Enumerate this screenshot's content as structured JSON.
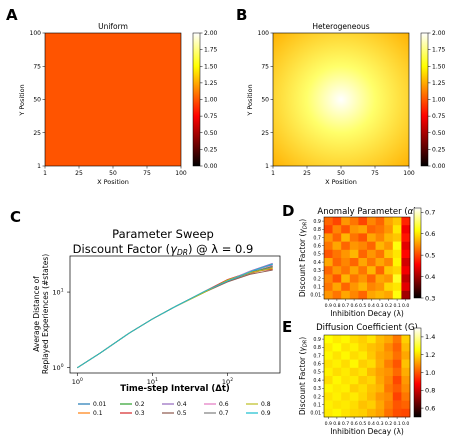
{
  "panels": {
    "A": "A",
    "B": "B",
    "C": "C",
    "D": "D",
    "E": "E"
  },
  "chart_data": [
    {
      "id": "A",
      "type": "heatmap",
      "title": "Uniform",
      "xlabel": "X Position",
      "ylabel": "Y Position",
      "xticks": [
        "1",
        "25",
        "50",
        "75",
        "100"
      ],
      "yticks": [
        "1",
        "25",
        "50",
        "75",
        "100"
      ],
      "colorbar_ticks": [
        "0.00",
        "0.25",
        "0.50",
        "0.75",
        "1.00",
        "1.25",
        "1.50",
        "1.75",
        "2.00"
      ],
      "colormap": "hot",
      "vmin": 0,
      "vmax": 2,
      "value": 1.0,
      "color": "#ff5400"
    },
    {
      "id": "B",
      "type": "heatmap",
      "title": "Heterogeneous",
      "xlabel": "X Position",
      "ylabel": "Y Position",
      "xticks": [
        "1",
        "25",
        "50",
        "75",
        "100"
      ],
      "yticks": [
        "1",
        "25",
        "50",
        "75",
        "100"
      ],
      "colorbar_ticks": [
        "0.00",
        "0.25",
        "0.50",
        "0.75",
        "1.00",
        "1.25",
        "1.50",
        "1.75",
        "2.00"
      ],
      "colormap": "hot",
      "vmin": 0,
      "vmax": 2,
      "center_value": 2.0,
      "edge_value": 1.3,
      "center_color": "#ffffff",
      "edge_color": "#ffb000"
    },
    {
      "id": "C",
      "type": "line",
      "title_line1": "Parameter Sweep",
      "title_line2_prefix": "Discount Factor (",
      "title_line2_symbol": "γ",
      "title_line2_sub": "DR",
      "title_line2_suffix": ") @ λ = 0.9",
      "xlabel": "Time-step Interval (Δt)",
      "ylabel_line1": "Average Distance of",
      "ylabel_line2": "Replayed Experiences (#states)",
      "xscale": "log",
      "yscale": "log",
      "xlim": [
        0.8,
        500
      ],
      "ylim": [
        0.85,
        30
      ],
      "xticks": [
        {
          "value": 1,
          "base": "10",
          "exp": "0"
        },
        {
          "value": 10,
          "base": "10",
          "exp": "1"
        },
        {
          "value": 100,
          "base": "10",
          "exp": "2"
        }
      ],
      "yticks": [
        {
          "value": 1,
          "base": "10",
          "exp": "0"
        },
        {
          "value": 10,
          "base": "10",
          "exp": "1"
        }
      ],
      "x": [
        1,
        2,
        5,
        10,
        20,
        50,
        100,
        200,
        400
      ],
      "series": [
        {
          "name": "0.01",
          "color": "#1f77b4",
          "values": [
            1.0,
            1.55,
            2.9,
            4.4,
            6.4,
            10.1,
            14.0,
            18.3,
            23.0
          ]
        },
        {
          "name": "0.1",
          "color": "#ff7f0e",
          "values": [
            1.0,
            1.55,
            2.9,
            4.4,
            6.4,
            10.2,
            14.3,
            17.6,
            21.0
          ]
        },
        {
          "name": "0.2",
          "color": "#2ca02c",
          "values": [
            1.0,
            1.55,
            2.9,
            4.4,
            6.4,
            10.0,
            13.8,
            18.0,
            22.0
          ]
        },
        {
          "name": "0.3",
          "color": "#d62728",
          "values": [
            1.0,
            1.55,
            2.9,
            4.4,
            6.4,
            10.3,
            14.6,
            18.5,
            20.0
          ]
        },
        {
          "name": "0.4",
          "color": "#9467bd",
          "values": [
            1.0,
            1.55,
            2.9,
            4.4,
            6.4,
            10.1,
            14.2,
            19.0,
            24.0
          ]
        },
        {
          "name": "0.5",
          "color": "#8c564b",
          "values": [
            1.0,
            1.55,
            2.9,
            4.4,
            6.4,
            10.0,
            13.6,
            17.2,
            19.5
          ]
        },
        {
          "name": "0.6",
          "color": "#e377c2",
          "values": [
            1.0,
            1.55,
            2.9,
            4.4,
            6.4,
            10.2,
            14.1,
            18.8,
            22.5
          ]
        },
        {
          "name": "0.7",
          "color": "#7f7f7f",
          "values": [
            1.0,
            1.55,
            2.9,
            4.4,
            6.4,
            10.1,
            13.9,
            17.8,
            21.5
          ]
        },
        {
          "name": "0.8",
          "color": "#bcbd22",
          "values": [
            1.0,
            1.55,
            2.9,
            4.4,
            6.4,
            10.0,
            14.4,
            18.2,
            20.5
          ]
        },
        {
          "name": "0.9",
          "color": "#17becf",
          "values": [
            1.0,
            1.55,
            2.9,
            4.4,
            6.4,
            10.3,
            14.0,
            18.6,
            23.5
          ]
        }
      ]
    },
    {
      "id": "D",
      "type": "heatmap",
      "title_prefix": "Anomaly Parameter (",
      "title_symbol": "α",
      "title_suffix": ")",
      "xlabel": "Inhibition Decay (λ)",
      "ylabel_prefix": "Discount Factor (",
      "ylabel_symbol": "γ",
      "ylabel_sub": "DR",
      "ylabel_suffix": ")",
      "xticks": [
        "0.9",
        "0.8",
        "0.7",
        "0.6",
        "0.5",
        "0.4",
        "0.3",
        "0.2",
        "0.1",
        "0.0"
      ],
      "yticks": [
        "0.9",
        "0.8",
        "0.7",
        "0.6",
        "0.5",
        "0.4",
        "0.3",
        "0.2",
        "0.1",
        "0.01"
      ],
      "colorbar_ticks": [
        "0.3",
        "0.4",
        "0.5",
        "0.6",
        "0.7"
      ],
      "colormap": "hot",
      "vmin": 0.3,
      "vmax": 0.72,
      "values": [
        [
          0.52,
          0.5,
          0.55,
          0.53,
          0.5,
          0.54,
          0.52,
          0.56,
          0.58,
          0.48
        ],
        [
          0.5,
          0.54,
          0.51,
          0.55,
          0.56,
          0.52,
          0.53,
          0.55,
          0.6,
          0.45
        ],
        [
          0.55,
          0.52,
          0.57,
          0.53,
          0.51,
          0.56,
          0.54,
          0.57,
          0.58,
          0.47
        ],
        [
          0.53,
          0.56,
          0.52,
          0.55,
          0.54,
          0.52,
          0.57,
          0.55,
          0.62,
          0.44
        ],
        [
          0.51,
          0.53,
          0.55,
          0.57,
          0.52,
          0.55,
          0.53,
          0.58,
          0.6,
          0.46
        ],
        [
          0.56,
          0.52,
          0.54,
          0.52,
          0.56,
          0.53,
          0.56,
          0.54,
          0.61,
          0.43
        ],
        [
          0.52,
          0.55,
          0.53,
          0.56,
          0.53,
          0.57,
          0.52,
          0.58,
          0.59,
          0.45
        ],
        [
          0.54,
          0.51,
          0.57,
          0.53,
          0.55,
          0.52,
          0.56,
          0.55,
          0.63,
          0.42
        ],
        [
          0.53,
          0.56,
          0.52,
          0.55,
          0.57,
          0.54,
          0.55,
          0.59,
          0.6,
          0.44
        ],
        [
          0.55,
          0.53,
          0.56,
          0.54,
          0.52,
          0.56,
          0.57,
          0.56,
          0.62,
          0.4
        ]
      ]
    },
    {
      "id": "E",
      "type": "heatmap",
      "title": "Diffusion Coefficient (G)",
      "xlabel": "Inhibition Decay (λ)",
      "ylabel_prefix": "Discount Factor (",
      "ylabel_symbol": "γ",
      "ylabel_sub": "DR",
      "ylabel_suffix": ")",
      "xticks": [
        "0.9",
        "0.8",
        "0.7",
        "0.6",
        "0.5",
        "0.4",
        "0.3",
        "0.2",
        "0.1",
        "0.0"
      ],
      "yticks": [
        "0.9",
        "0.8",
        "0.7",
        "0.6",
        "0.5",
        "0.4",
        "0.3",
        "0.2",
        "0.1",
        "0.01"
      ],
      "colorbar_ticks": [
        "0.6",
        "0.8",
        "1.0",
        "1.2",
        "1.4"
      ],
      "colormap": "hot",
      "vmin": 0.5,
      "vmax": 1.5,
      "values": [
        [
          1.25,
          1.22,
          1.24,
          1.2,
          1.18,
          1.21,
          1.15,
          1.12,
          1.05,
          1.18
        ],
        [
          1.22,
          1.25,
          1.21,
          1.23,
          1.19,
          1.16,
          1.14,
          1.08,
          1.02,
          1.15
        ],
        [
          1.24,
          1.21,
          1.24,
          1.2,
          1.22,
          1.17,
          1.12,
          1.1,
          1.04,
          1.12
        ],
        [
          1.21,
          1.23,
          1.2,
          1.24,
          1.18,
          1.2,
          1.13,
          1.06,
          1.0,
          1.16
        ],
        [
          1.23,
          1.2,
          1.22,
          1.19,
          1.21,
          1.15,
          1.11,
          1.09,
          1.03,
          1.13
        ],
        [
          1.2,
          1.24,
          1.21,
          1.22,
          1.17,
          1.19,
          1.12,
          1.07,
          0.98,
          1.1
        ],
        [
          1.24,
          1.22,
          1.23,
          1.18,
          1.2,
          1.16,
          1.14,
          1.05,
          1.01,
          1.08
        ],
        [
          1.21,
          1.23,
          1.2,
          1.22,
          1.19,
          1.15,
          1.1,
          1.08,
          0.97,
          1.05
        ],
        [
          1.23,
          1.21,
          1.22,
          1.2,
          1.16,
          1.18,
          1.12,
          1.06,
          1.0,
          1.02
        ],
        [
          1.22,
          1.24,
          1.21,
          1.19,
          1.18,
          1.14,
          1.11,
          1.04,
          0.99,
          0.98
        ]
      ]
    }
  ]
}
